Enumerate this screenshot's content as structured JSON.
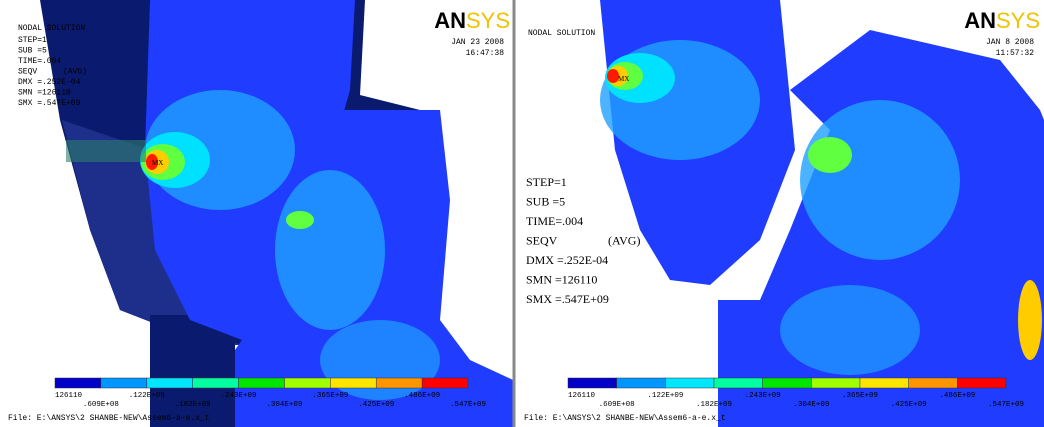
{
  "panels": [
    {
      "title": "NODAL SOLUTION",
      "step": "STEP=1",
      "sub": "SUB =5",
      "time": "TIME=.004",
      "seqv": "SEQV",
      "avg": "(AVG)",
      "dmx": "DMX =.252E-04",
      "smn": "SMN =126110",
      "smx": "SMX =.547E+09",
      "date": "JAN 23 2008",
      "clock": "16:47:38",
      "logo_a": "AN",
      "logo_b": "SYS",
      "mx": "MX",
      "legend": [
        "126110",
        ".609E+08",
        ".122E+09",
        ".182E+09",
        ".243E+09",
        ".304E+09",
        ".365E+09",
        ".425E+09",
        ".486E+09",
        ".547E+09"
      ],
      "file": "File: E:\\ANSYS\\2 SHANBE-NEW\\Assem6-a-e.x_t"
    },
    {
      "title": "NODAL SOLUTION",
      "step": "STEP=1",
      "sub": "SUB =5",
      "time": "TIME=.004",
      "seqv": "SEQV",
      "avg": "(AVG)",
      "dmx": "DMX =.252E-04",
      "smn": "SMN =126110",
      "smx": "SMX =.547E+09",
      "date": "JAN 8 2008",
      "clock": "11:57:32",
      "logo_a": "AN",
      "logo_b": "SYS",
      "mx": "MX",
      "legend": [
        "126110",
        ".609E+08",
        ".122E+09",
        ".182E+09",
        ".243E+09",
        ".304E+09",
        ".365E+09",
        ".425E+09",
        ".486E+09",
        ".547E+09"
      ],
      "file": "File: E:\\ANSYS\\2 SHANBE-NEW\\Assem6-a-e.x_t"
    }
  ]
}
